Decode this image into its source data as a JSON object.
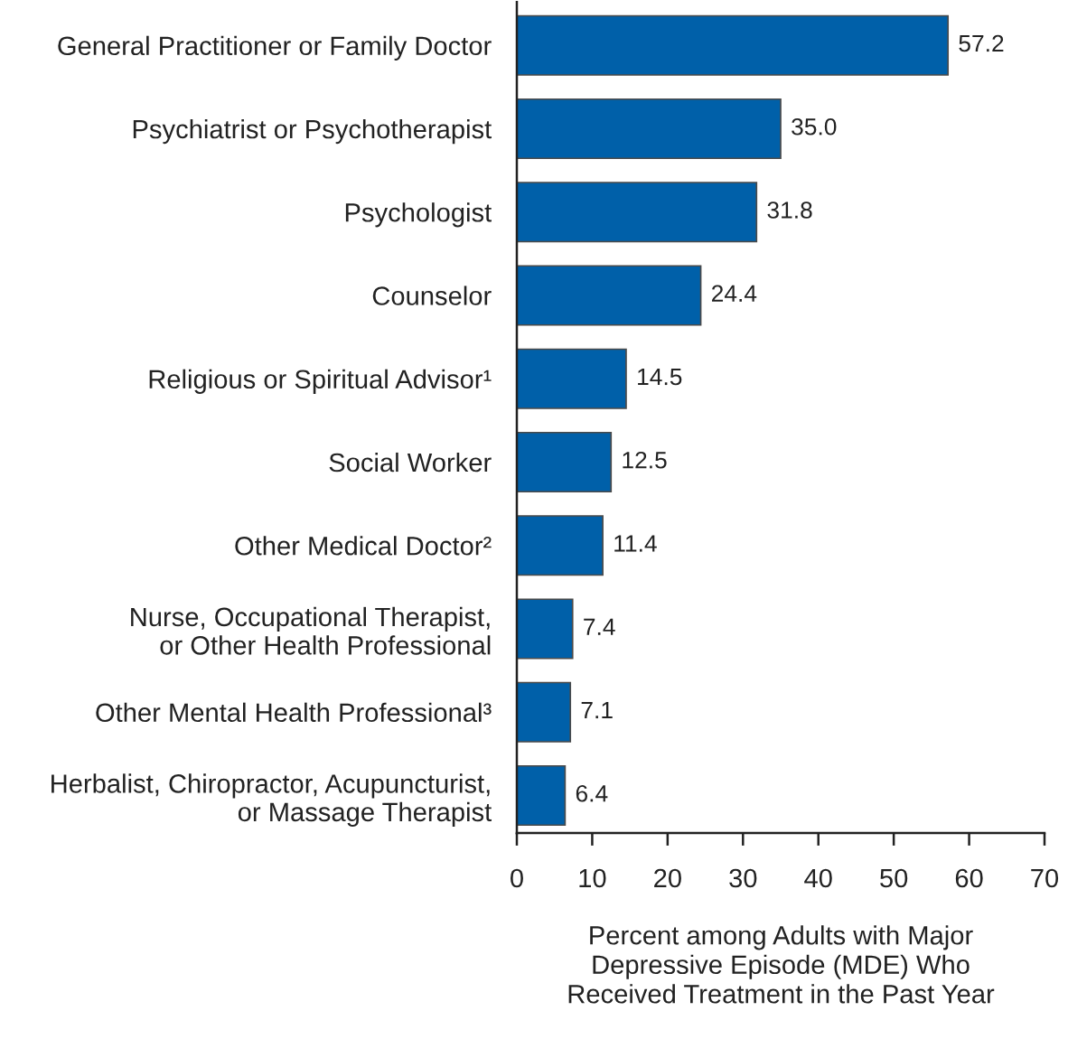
{
  "chart_data": {
    "type": "bar",
    "orientation": "horizontal",
    "categories": [
      "General Practitioner or Family Doctor",
      "Psychiatrist or Psychotherapist",
      "Psychologist",
      "Counselor",
      "Religious or Spiritual Advisor¹",
      "Social Worker",
      "Other Medical Doctor²",
      "Nurse, Occupational Therapist,\nor Other Health Professional",
      "Other Mental Health Professional³",
      "Herbalist, Chiropractor, Acupuncturist,\nor Massage Therapist"
    ],
    "values": [
      57.2,
      35.0,
      31.8,
      24.4,
      14.5,
      12.5,
      11.4,
      7.4,
      7.1,
      6.4
    ],
    "value_labels": [
      "57.2",
      "35.0",
      "31.8",
      "24.4",
      "14.5",
      "12.5",
      "11.4",
      "7.4",
      "7.1",
      "6.4"
    ],
    "color": "#0060a9",
    "xlabel": "Percent among Adults with Major\nDepressive Episode (MDE) Who\nReceived Treatment in the Past Year",
    "xlim": [
      0,
      70
    ],
    "xticks": [
      0,
      10,
      20,
      30,
      40,
      50,
      60,
      70
    ]
  }
}
